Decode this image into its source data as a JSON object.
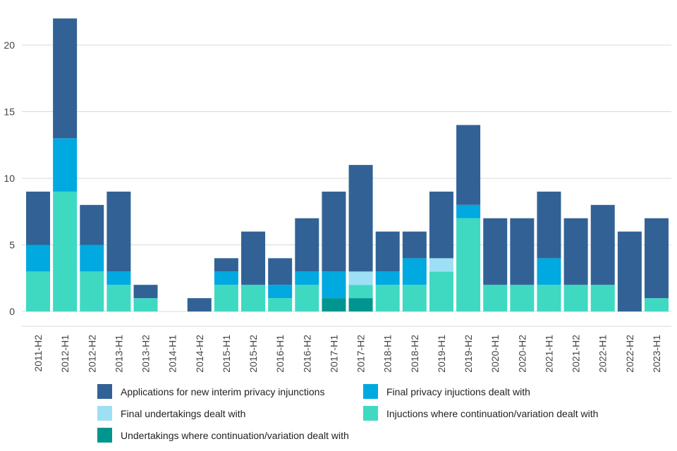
{
  "chart_data": {
    "type": "bar",
    "stacked": true,
    "title": "",
    "xlabel": "",
    "ylabel": "",
    "ylim": [
      0,
      22
    ],
    "yticks": [
      0,
      5,
      10,
      15,
      20
    ],
    "grid": true,
    "legend_position": "bottom",
    "categories": [
      "2011-H2",
      "2012-H1",
      "2012-H2",
      "2013-H1",
      "2013-H2",
      "2014-H1",
      "2014-H2",
      "2015-H1",
      "2015-H2",
      "2016-H1",
      "2016-H2",
      "2017-H1",
      "2017-H2",
      "2018-H1",
      "2018-H2",
      "2019-H1",
      "2019-H2",
      "2020-H1",
      "2020-H2",
      "2021-H1",
      "2021-H2",
      "2022-H1",
      "2022-H2",
      "2023-H1"
    ],
    "series": [
      {
        "name": "Undertakings where continuation/variation dealt with",
        "color": "#00958f",
        "values": [
          0,
          0,
          0,
          0,
          0,
          0,
          0,
          0,
          0,
          0,
          0,
          1,
          1,
          0,
          0,
          0,
          0,
          0,
          0,
          0,
          0,
          0,
          0,
          0
        ]
      },
      {
        "name": "Injuctions where continuation/variation dealt with",
        "color": "#3fd9c2",
        "values": [
          3,
          9,
          3,
          2,
          1,
          0,
          0,
          2,
          2,
          1,
          2,
          0,
          1,
          2,
          2,
          3,
          7,
          2,
          2,
          2,
          2,
          2,
          0,
          1
        ]
      },
      {
        "name": "Final undertakings dealt with",
        "color": "#9de0f5",
        "values": [
          0,
          0,
          0,
          0,
          0,
          0,
          0,
          0,
          0,
          0,
          0,
          0,
          1,
          0,
          0,
          1,
          0,
          0,
          0,
          0,
          0,
          0,
          0,
          0
        ]
      },
      {
        "name": "Final privacy injuctions dealt with",
        "color": "#00a9e0",
        "values": [
          2,
          4,
          2,
          1,
          0,
          0,
          0,
          1,
          0,
          1,
          1,
          2,
          0,
          1,
          2,
          0,
          1,
          0,
          0,
          2,
          0,
          0,
          0,
          0
        ]
      },
      {
        "name": "Applications for new interim privacy injunctions",
        "color": "#326295",
        "values": [
          4,
          9,
          3,
          6,
          1,
          0,
          1,
          1,
          4,
          2,
          4,
          6,
          8,
          3,
          2,
          5,
          6,
          5,
          5,
          5,
          5,
          6,
          6,
          6
        ]
      }
    ]
  },
  "legend": [
    {
      "label": "Applications for new interim privacy injunctions",
      "color": "#326295"
    },
    {
      "label": "Final privacy injuctions dealt with",
      "color": "#00a9e0"
    },
    {
      "label": "Final undertakings dealt with",
      "color": "#9de0f5"
    },
    {
      "label": "Injuctions where continuation/variation dealt with",
      "color": "#3fd9c2"
    },
    {
      "label": "Undertakings where continuation/variation dealt with",
      "color": "#00958f"
    }
  ]
}
